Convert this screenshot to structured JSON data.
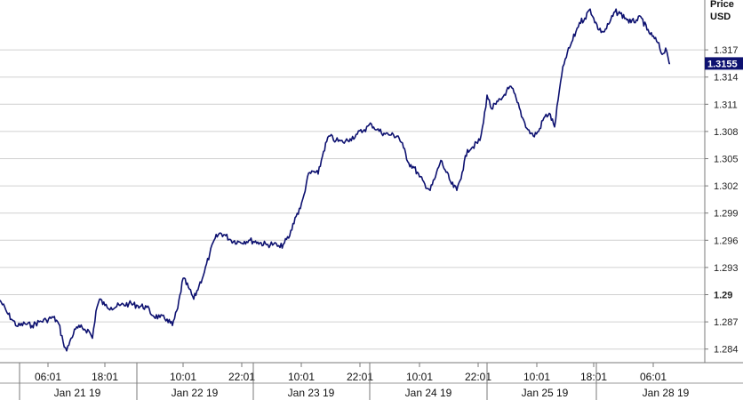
{
  "chart_data": {
    "type": "line",
    "unit_label_1": "Price",
    "unit_label_2": "USD",
    "last_price": "1.3155",
    "ylim": [
      1.2825,
      1.3225
    ],
    "grid": true,
    "colors": {
      "line": "#0d1170",
      "grid": "#d0d0d0",
      "last_badge": "#0d1170"
    },
    "y_ticks": [
      "1.284",
      "1.287",
      "1.29",
      "1.293",
      "1.296",
      "1.299",
      "1.302",
      "1.305",
      "1.308",
      "1.311",
      "1.314",
      "1.317"
    ],
    "y_tick_bold": "1.29",
    "time_labels": [
      "06:01",
      "18:01",
      "10:01",
      "22:01",
      "10:01",
      "22:01",
      "10:01",
      "22:01",
      "10:01",
      "18:01",
      "06:01"
    ],
    "time_label_x": [
      54,
      118,
      206,
      272,
      339,
      405,
      472,
      538,
      604,
      668,
      735
    ],
    "date_labels": [
      "Jan 21 19",
      "Jan 22 19",
      "Jan 23 19",
      "Jan 24 19",
      "Jan 25 19",
      "Jan 28 19"
    ],
    "date_label_x": [
      87,
      219,
      350,
      482,
      613,
      749
    ],
    "series": [
      {
        "points": [
          [
            0,
            1.2894
          ],
          [
            8,
            1.288
          ],
          [
            14,
            1.2872
          ],
          [
            20,
            1.2865
          ],
          [
            28,
            1.2868
          ],
          [
            36,
            1.2866
          ],
          [
            44,
            1.287
          ],
          [
            52,
            1.2872
          ],
          [
            60,
            1.2875
          ],
          [
            66,
            1.2868
          ],
          [
            71,
            1.2848
          ],
          [
            75,
            1.2838
          ],
          [
            80,
            1.2852
          ],
          [
            85,
            1.2862
          ],
          [
            90,
            1.2864
          ],
          [
            95,
            1.2862
          ],
          [
            100,
            1.286
          ],
          [
            104,
            1.2852
          ],
          [
            108,
            1.2882
          ],
          [
            112,
            1.2895
          ],
          [
            118,
            1.2888
          ],
          [
            125,
            1.2886
          ],
          [
            135,
            1.2888
          ],
          [
            145,
            1.289
          ],
          [
            155,
            1.2888
          ],
          [
            165,
            1.2886
          ],
          [
            172,
            1.2877
          ],
          [
            180,
            1.2875
          ],
          [
            188,
            1.2873
          ],
          [
            194,
            1.2866
          ],
          [
            200,
            1.2885
          ],
          [
            206,
            1.2918
          ],
          [
            212,
            1.2908
          ],
          [
            218,
            1.2895
          ],
          [
            224,
            1.291
          ],
          [
            230,
            1.2925
          ],
          [
            236,
            1.2945
          ],
          [
            242,
            1.2962
          ],
          [
            248,
            1.2968
          ],
          [
            254,
            1.2965
          ],
          [
            260,
            1.296
          ],
          [
            270,
            1.2958
          ],
          [
            280,
            1.296
          ],
          [
            290,
            1.2958
          ],
          [
            300,
            1.2955
          ],
          [
            308,
            1.2956
          ],
          [
            315,
            1.2952
          ],
          [
            320,
            1.2957
          ],
          [
            326,
            1.2965
          ],
          [
            332,
            1.2985
          ],
          [
            338,
            1.2995
          ],
          [
            342,
            1.301
          ],
          [
            346,
            1.303
          ],
          [
            352,
            1.3036
          ],
          [
            358,
            1.3033
          ],
          [
            364,
            1.3058
          ],
          [
            370,
            1.3075
          ],
          [
            378,
            1.307
          ],
          [
            386,
            1.3068
          ],
          [
            394,
            1.3072
          ],
          [
            402,
            1.3077
          ],
          [
            410,
            1.3082
          ],
          [
            418,
            1.3088
          ],
          [
            424,
            1.3082
          ],
          [
            432,
            1.3078
          ],
          [
            440,
            1.3076
          ],
          [
            448,
            1.3075
          ],
          [
            454,
            1.3062
          ],
          [
            460,
            1.3045
          ],
          [
            466,
            1.304
          ],
          [
            472,
            1.303
          ],
          [
            478,
            1.3022
          ],
          [
            484,
            1.3015
          ],
          [
            490,
            1.303
          ],
          [
            496,
            1.3048
          ],
          [
            502,
            1.3035
          ],
          [
            508,
            1.3022
          ],
          [
            514,
            1.3015
          ],
          [
            520,
            1.3035
          ],
          [
            526,
            1.306
          ],
          [
            532,
            1.3063
          ],
          [
            540,
            1.307
          ],
          [
            544,
            1.309
          ],
          [
            548,
            1.312
          ],
          [
            553,
            1.3105
          ],
          [
            558,
            1.311
          ],
          [
            564,
            1.3115
          ],
          [
            570,
            1.3125
          ],
          [
            576,
            1.3128
          ],
          [
            582,
            1.3112
          ],
          [
            588,
            1.3095
          ],
          [
            594,
            1.3082
          ],
          [
            600,
            1.3075
          ],
          [
            606,
            1.308
          ],
          [
            612,
            1.3095
          ],
          [
            618,
            1.31
          ],
          [
            624,
            1.3085
          ],
          [
            628,
            1.3115
          ],
          [
            632,
            1.3142
          ],
          [
            636,
            1.316
          ],
          [
            642,
            1.3175
          ],
          [
            648,
            1.319
          ],
          [
            652,
            1.32
          ],
          [
            658,
            1.3205
          ],
          [
            664,
            1.3215
          ],
          [
            668,
            1.3205
          ],
          [
            674,
            1.3192
          ],
          [
            680,
            1.319
          ],
          [
            686,
            1.32
          ],
          [
            692,
            1.3212
          ],
          [
            698,
            1.321
          ],
          [
            704,
            1.3205
          ],
          [
            710,
            1.32
          ],
          [
            716,
            1.3203
          ],
          [
            722,
            1.3205
          ],
          [
            728,
            1.3192
          ],
          [
            734,
            1.3185
          ],
          [
            740,
            1.3178
          ],
          [
            745,
            1.3165
          ],
          [
            749,
            1.3172
          ],
          [
            752,
            1.316
          ],
          [
            754,
            1.3155
          ]
        ]
      }
    ]
  }
}
